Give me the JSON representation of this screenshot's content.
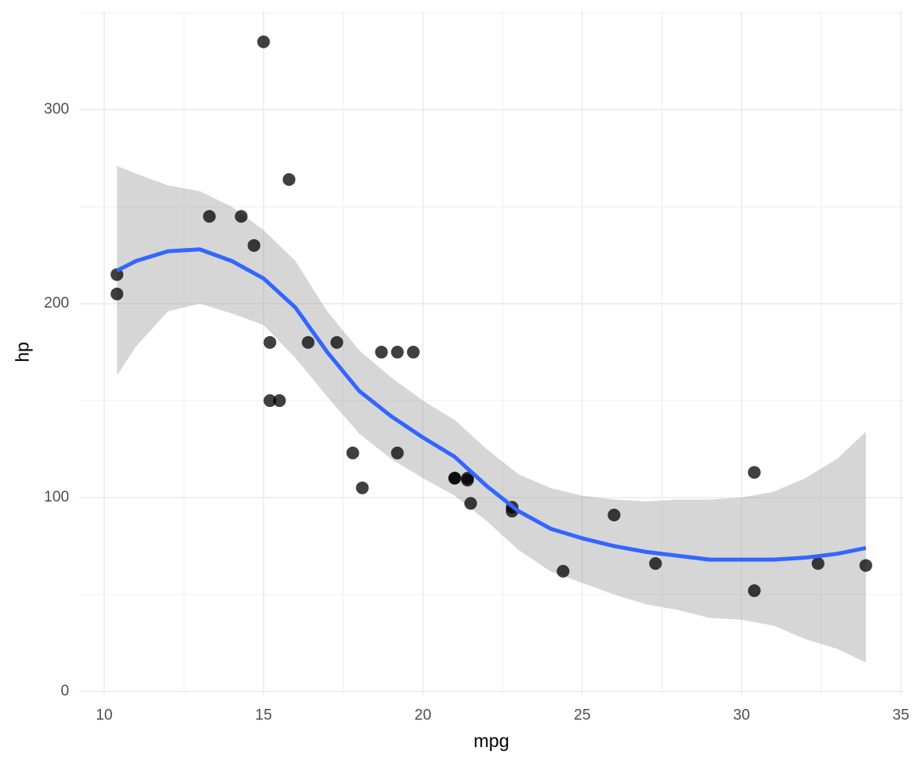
{
  "chart_data": {
    "type": "scatter",
    "x_label": "mpg",
    "y_label": "hp",
    "x": [
      21,
      21,
      22.8,
      21.4,
      18.7,
      18.1,
      14.3,
      24.4,
      22.8,
      19.2,
      17.8,
      16.4,
      17.3,
      15.2,
      10.4,
      10.4,
      14.7,
      32.4,
      30.4,
      33.9,
      21.5,
      15.5,
      15.2,
      13.3,
      19.2,
      27.3,
      26,
      15.8,
      19.7,
      15,
      21.4,
      30.4
    ],
    "y": [
      110,
      110,
      93,
      110,
      175,
      105,
      245,
      62,
      95,
      123,
      123,
      180,
      180,
      180,
      205,
      215,
      230,
      66,
      52,
      65,
      97,
      150,
      150,
      245,
      175,
      66,
      91,
      264,
      175,
      335,
      109,
      113
    ],
    "point_color": "#000000",
    "point_alpha": 0.75,
    "smooth": {
      "color": "#3366ff",
      "fill": "#999999",
      "fill_alpha": 0.4,
      "x": [
        10.4,
        11,
        12,
        13,
        14,
        15,
        16,
        17,
        18,
        19,
        20,
        21,
        22,
        23,
        24,
        25,
        26,
        27,
        28,
        29,
        30,
        31,
        32,
        33,
        33.9
      ],
      "fit": [
        217,
        222,
        227,
        228,
        222,
        213,
        198,
        175,
        155,
        142,
        131,
        121,
        106,
        93,
        84,
        79,
        75,
        72,
        70,
        68,
        68,
        68,
        69,
        71,
        74
      ],
      "lower": [
        163,
        178,
        196,
        200,
        195,
        189,
        172,
        152,
        133,
        120,
        110,
        101,
        88,
        73,
        62,
        56,
        50,
        45,
        42,
        38,
        37,
        34,
        27,
        22,
        15
      ],
      "upper": [
        271,
        267,
        261,
        258,
        250,
        238,
        222,
        196,
        176,
        162,
        150,
        140,
        125,
        112,
        105,
        101,
        99,
        98,
        99,
        99,
        100,
        103,
        110,
        120,
        134
      ]
    },
    "xlim": [
      9.225,
      35.075
    ],
    "ylim": [
      -1.5,
      351
    ],
    "xticks": [
      10,
      15,
      20,
      25,
      30,
      35
    ],
    "yticks": [
      0,
      100,
      200,
      300
    ],
    "minor_xticks": [
      12.5,
      17.5,
      22.5,
      27.5,
      32.5
    ],
    "minor_yticks": [
      50,
      150,
      250,
      350
    ],
    "grid": true
  }
}
